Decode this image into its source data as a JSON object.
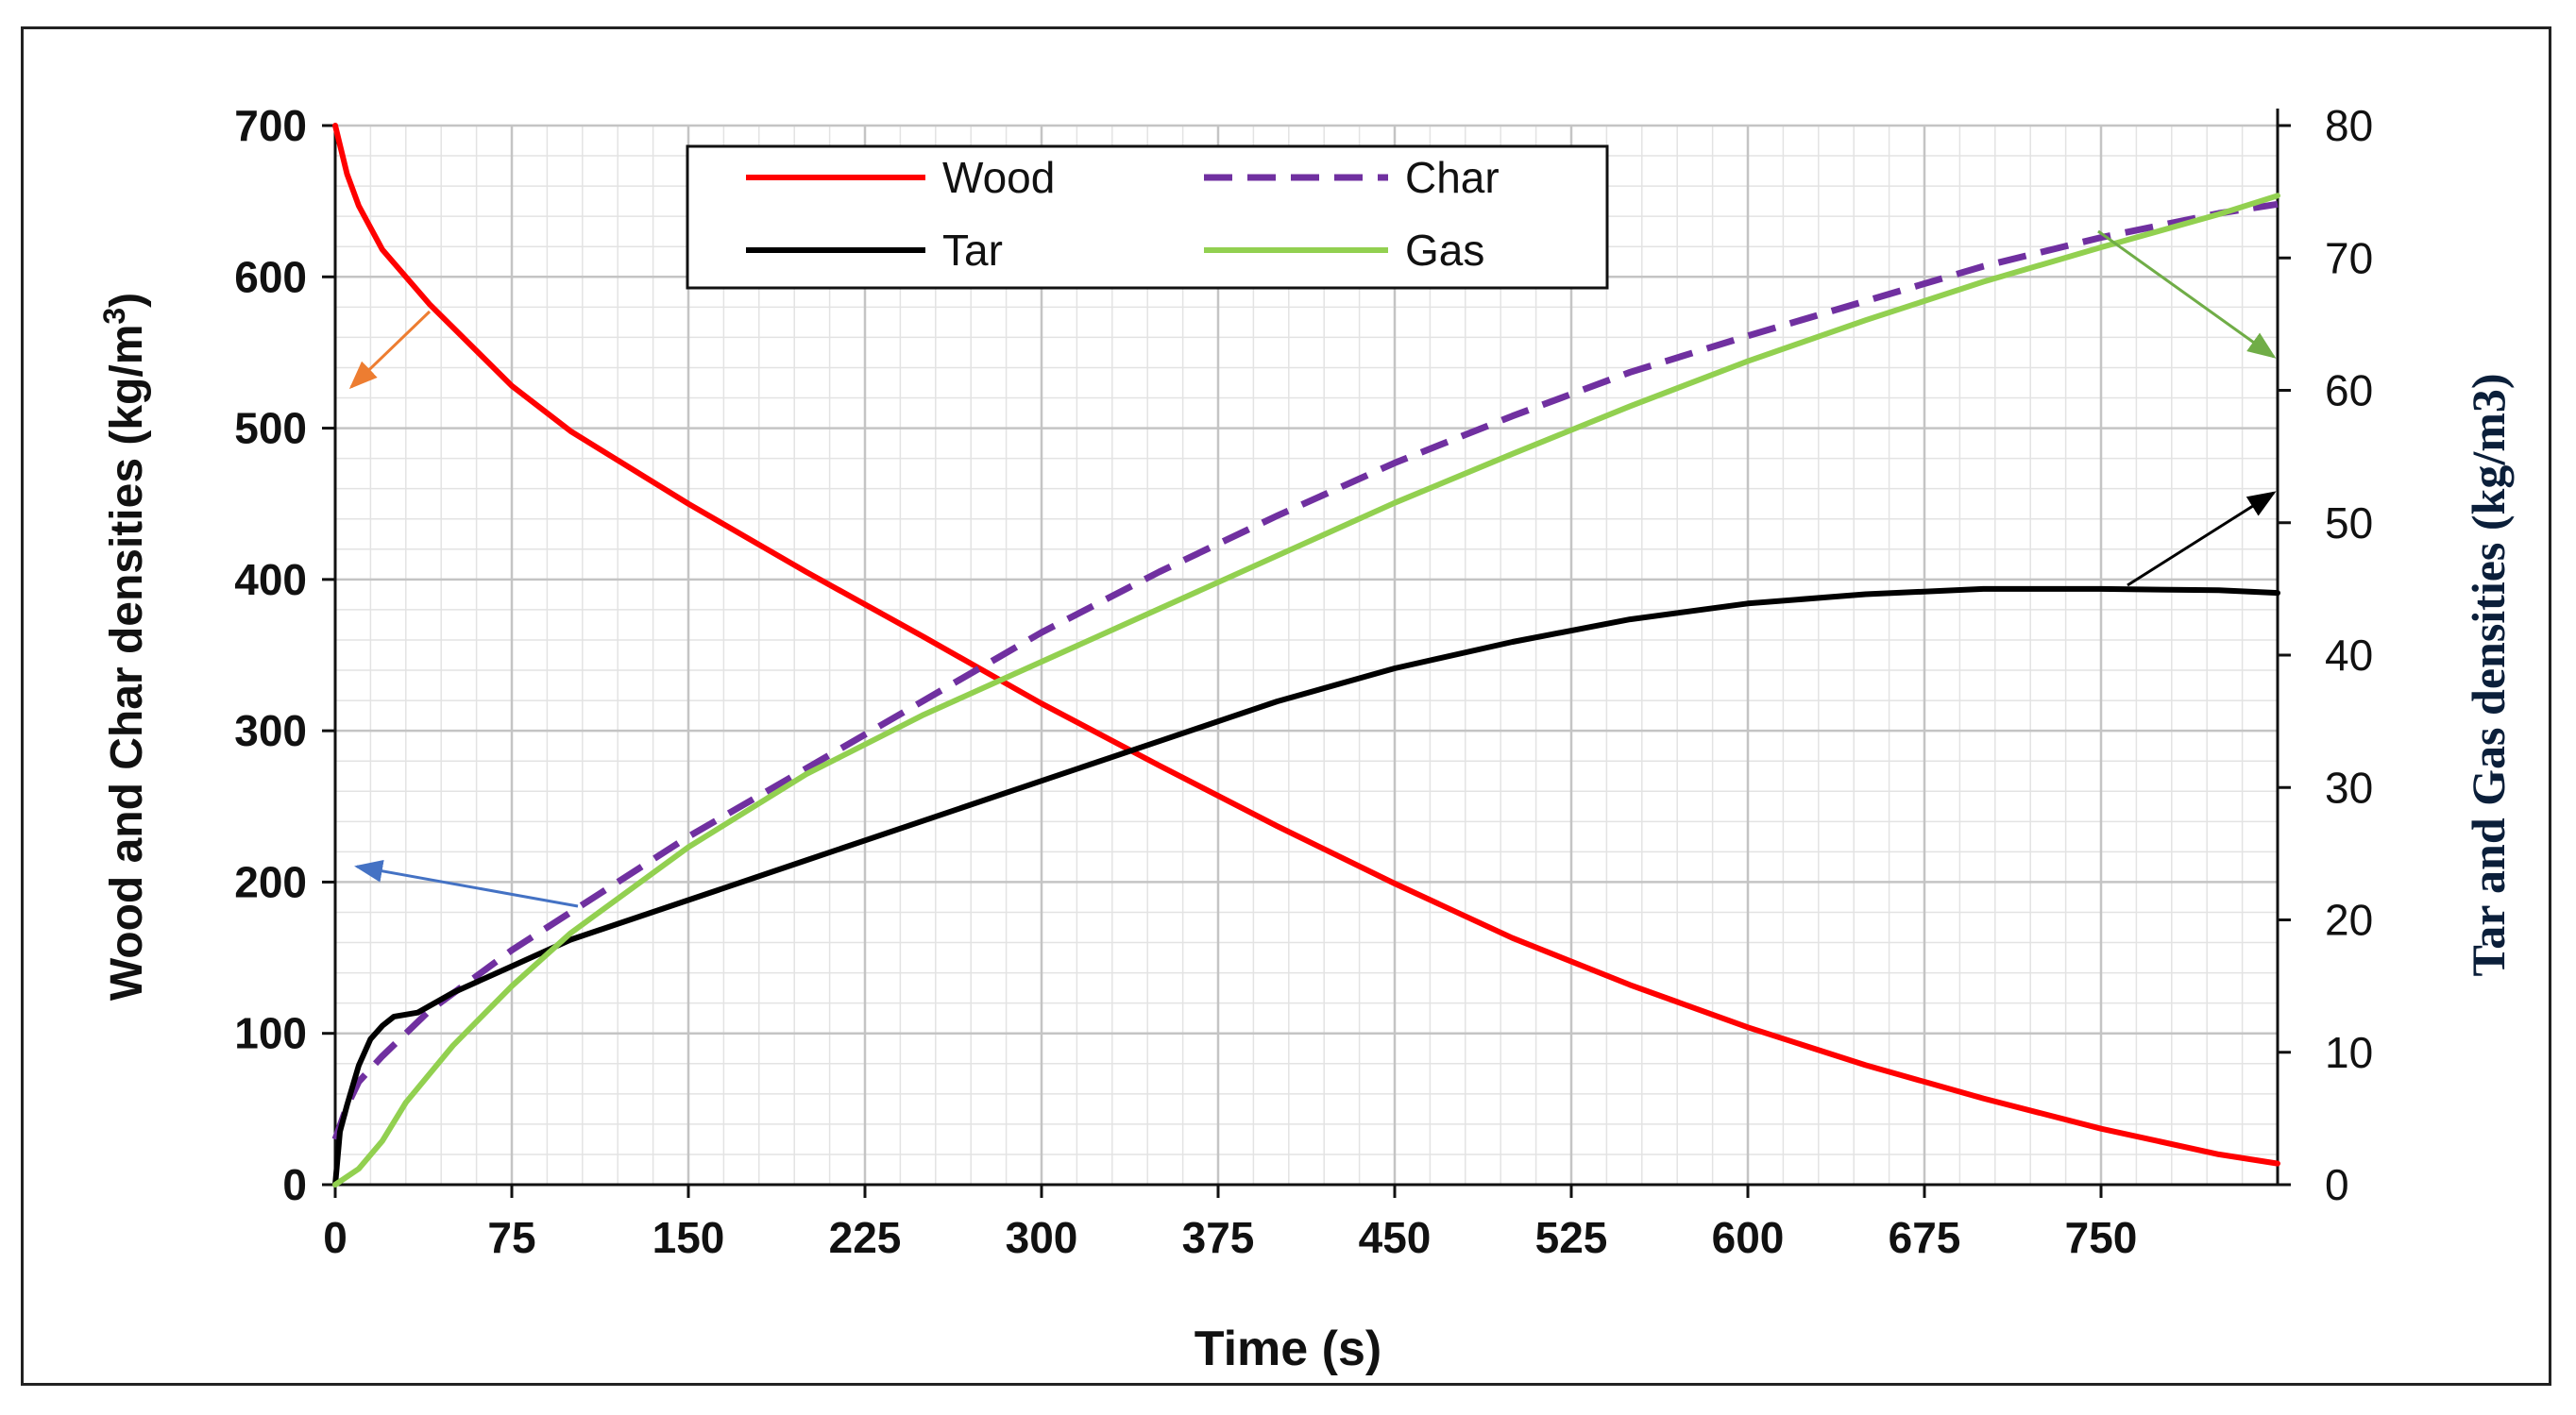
{
  "chart_data": {
    "type": "line",
    "title": "",
    "xlabel": "Time (s)",
    "ylabel_left": "Wood and Char densities (kg/m",
    "ylabel_left_superscript": "3",
    "ylabel_left_close": ")",
    "ylabel_right": "Tar and Gas densities (kg/m3)",
    "xlim": [
      0,
      825
    ],
    "ylim_left": [
      0,
      700
    ],
    "ylim_right": [
      0,
      80
    ],
    "x_ticks": [
      0,
      75,
      150,
      225,
      300,
      375,
      450,
      525,
      600,
      675,
      750
    ],
    "x_tick_labels": [
      "0",
      "75",
      "150",
      "225",
      "300",
      "375",
      "450",
      "525",
      "600",
      "675",
      "750"
    ],
    "y_left_ticks": [
      0,
      100,
      200,
      300,
      400,
      500,
      600,
      700
    ],
    "y_left_tick_labels": [
      "0",
      "100",
      "200",
      "300",
      "400",
      "500",
      "600",
      "700"
    ],
    "y_right_ticks": [
      0,
      10,
      20,
      30,
      40,
      50,
      60,
      70,
      80
    ],
    "y_right_tick_labels": [
      "0",
      "10",
      "20",
      "30",
      "40",
      "50",
      "60",
      "70",
      "80"
    ],
    "grid": true,
    "legend_position": "top-left",
    "legend_labels": {
      "wood": "Wood",
      "char": "Char",
      "tar": "Tar",
      "gas": "Gas"
    },
    "series": [
      {
        "name": "Wood",
        "axis": "left",
        "color": "#ff0000",
        "style": "solid",
        "x": [
          0,
          5,
          10,
          20,
          40,
          75,
          100,
          150,
          200,
          250,
          300,
          350,
          400,
          450,
          500,
          550,
          600,
          650,
          700,
          750,
          800,
          825
        ],
        "y": [
          700,
          668,
          647,
          618,
          582,
          528,
          498,
          450,
          405,
          362,
          318,
          277,
          237,
          199,
          163,
          132,
          104,
          79,
          57,
          37,
          20,
          14
        ]
      },
      {
        "name": "Char",
        "axis": "left",
        "color": "#7030a0",
        "style": "dashed",
        "x": [
          0,
          5,
          10,
          20,
          40,
          75,
          100,
          150,
          200,
          250,
          300,
          350,
          400,
          450,
          500,
          550,
          600,
          650,
          700,
          750,
          800,
          825
        ],
        "y": [
          30,
          52,
          68,
          85,
          115,
          155,
          180,
          230,
          275,
          320,
          365,
          405,
          442,
          477,
          508,
          537,
          561,
          584,
          607,
          626,
          642,
          648
        ]
      },
      {
        "name": "Tar",
        "axis": "right",
        "color": "#000000",
        "style": "solid",
        "x": [
          0,
          2,
          5,
          10,
          15,
          20,
          25,
          35,
          50,
          75,
          100,
          150,
          200,
          250,
          300,
          350,
          400,
          450,
          500,
          550,
          600,
          650,
          700,
          750,
          800,
          825
        ],
        "y": [
          0,
          4,
          6,
          9,
          11,
          12,
          12.7,
          13,
          14.5,
          16.5,
          18.5,
          21.5,
          24.5,
          27.5,
          30.5,
          33.5,
          36.5,
          39,
          41,
          42.7,
          43.9,
          44.6,
          45,
          45,
          44.9,
          44.7
        ]
      },
      {
        "name": "Gas",
        "axis": "right",
        "color": "#92d050",
        "style": "solid",
        "x": [
          0,
          10,
          20,
          30,
          50,
          75,
          100,
          150,
          200,
          250,
          300,
          350,
          400,
          450,
          500,
          550,
          600,
          650,
          700,
          750,
          800,
          825
        ],
        "y": [
          0,
          1.2,
          3.3,
          6.2,
          10.5,
          15,
          19,
          25.5,
          31,
          35.5,
          39.5,
          43.5,
          47.5,
          51.5,
          55.2,
          58.8,
          62.2,
          65.3,
          68.2,
          70.8,
          73.3,
          74.7
        ]
      }
    ],
    "annotation_arrows": [
      {
        "color": "#ed7d31"
      },
      {
        "color": "#4472c4"
      },
      {
        "color": "#70ad47"
      },
      {
        "color": "#000000"
      }
    ],
    "right_axis_title_color": "#0b1f3a"
  }
}
